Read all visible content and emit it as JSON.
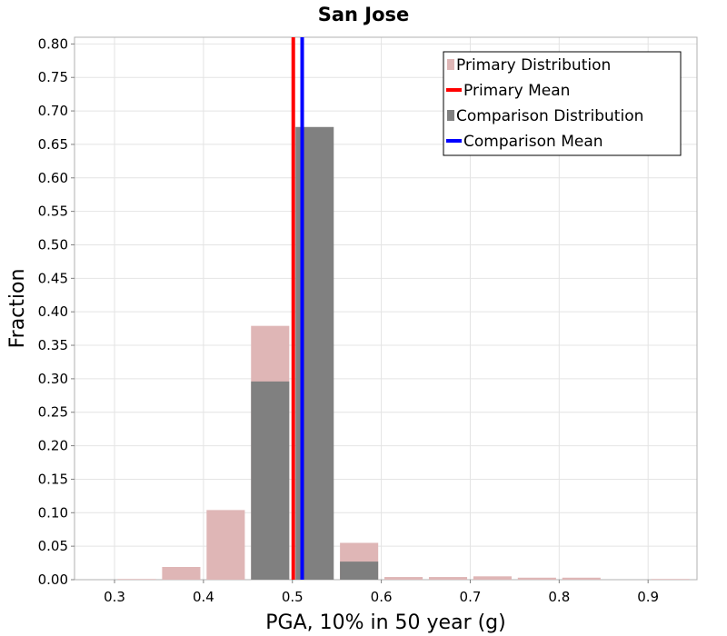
{
  "chart_data": {
    "type": "bar",
    "title": "San Jose",
    "xlabel": "PGA, 10% in 50 year (g)",
    "ylabel": "Fraction",
    "xlim": [
      0.255,
      0.955
    ],
    "ylim": [
      0,
      0.81
    ],
    "xticks": [
      "0.3",
      "0.4",
      "0.5",
      "0.6",
      "0.7",
      "0.8",
      "0.9"
    ],
    "yticks": [
      "0.00",
      "0.05",
      "0.10",
      "0.15",
      "0.20",
      "0.25",
      "0.30",
      "0.35",
      "0.40",
      "0.45",
      "0.50",
      "0.55",
      "0.60",
      "0.65",
      "0.70",
      "0.75",
      "0.80"
    ],
    "bin_width": 0.05,
    "series": [
      {
        "name": "Primary Distribution",
        "kind": "bar",
        "color": "#dfb6b6",
        "bin_centers": [
          0.325,
          0.375,
          0.425,
          0.475,
          0.525,
          0.575,
          0.625,
          0.675,
          0.725,
          0.775,
          0.825,
          0.875,
          0.925
        ],
        "values": [
          0.001,
          0.019,
          0.104,
          0.379,
          0.0,
          0.055,
          0.004,
          0.004,
          0.005,
          0.003,
          0.003,
          0.0,
          0.001
        ]
      },
      {
        "name": "Comparison Distribution",
        "kind": "bar",
        "color": "#808080",
        "bin_centers": [
          0.475,
          0.525,
          0.575
        ],
        "values": [
          0.296,
          0.676,
          0.027
        ]
      },
      {
        "name": "Primary Mean",
        "kind": "vline",
        "color": "#ff0000",
        "x": 0.501
      },
      {
        "name": "Comparison Mean",
        "kind": "vline",
        "color": "#0000ff",
        "x": 0.511
      }
    ],
    "legend": {
      "position": "top-right",
      "entries": [
        {
          "label": "Primary Distribution",
          "color": "#dfb6b6",
          "style": "box"
        },
        {
          "label": "Primary Mean",
          "color": "#ff0000",
          "style": "line"
        },
        {
          "label": "Comparison Distribution",
          "color": "#808080",
          "style": "box"
        },
        {
          "label": "Comparison Mean",
          "color": "#0000ff",
          "style": "line"
        }
      ]
    },
    "grid": true
  }
}
